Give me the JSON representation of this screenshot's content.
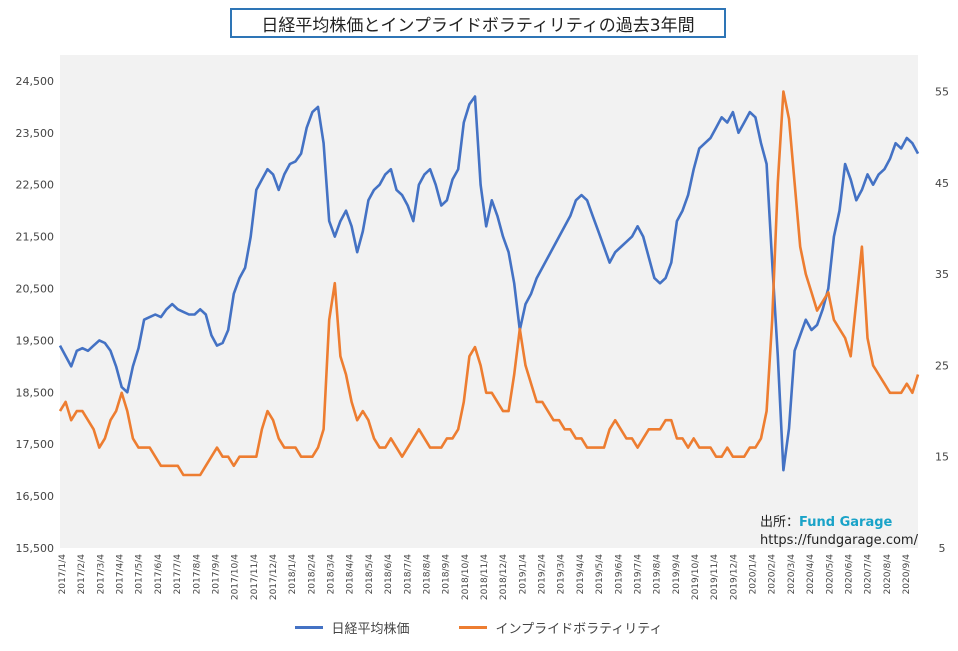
{
  "chart_data": {
    "type": "line",
    "title": "日経平均株価とインプライドボラティリティの過去3年間",
    "x_tick_labels": [
      "2017/1/4",
      "2017/2/4",
      "2017/3/4",
      "2017/4/4",
      "2017/5/4",
      "2017/6/4",
      "2017/7/4",
      "2017/8/4",
      "2017/9/4",
      "2017/10/4",
      "2017/11/4",
      "2017/12/4",
      "2018/1/4",
      "2018/2/4",
      "2018/3/4",
      "2018/4/4",
      "2018/5/4",
      "2018/6/4",
      "2018/7/4",
      "2018/8/4",
      "2018/9/4",
      "2018/10/4",
      "2018/11/4",
      "2018/12/4",
      "2019/1/4",
      "2019/2/4",
      "2019/3/4",
      "2019/4/4",
      "2019/5/4",
      "2019/6/4",
      "2019/7/4",
      "2019/8/4",
      "2019/9/4",
      "2019/10/4",
      "2019/11/4",
      "2019/12/4",
      "2020/1/4",
      "2020/2/4",
      "2020/3/4",
      "2020/4/4",
      "2020/5/4",
      "2020/6/4",
      "2020/7/4",
      "2020/8/4",
      "2020/9/4"
    ],
    "y_left": {
      "min": 15500,
      "max": 25000,
      "ticks": [
        15500,
        16500,
        17500,
        18500,
        19500,
        20500,
        21500,
        22500,
        23500,
        24500
      ],
      "tick_labels": [
        "15,500",
        "16,500",
        "17,500",
        "18,500",
        "19,500",
        "20,500",
        "21,500",
        "22,500",
        "23,500",
        "24,500"
      ]
    },
    "y_right": {
      "min": 5,
      "max": 59,
      "ticks": [
        5,
        15,
        25,
        35,
        45,
        55
      ],
      "tick_labels": [
        "5",
        "15",
        "25",
        "35",
        "45",
        "55"
      ]
    },
    "grid": false,
    "legend_position": "bottom",
    "series": [
      {
        "name": "日経平均株価",
        "axis": "left",
        "color": "#4472c4",
        "values": [
          19400,
          19200,
          19000,
          19300,
          19350,
          19300,
          19400,
          19500,
          19450,
          19300,
          19000,
          18600,
          18500,
          19000,
          19350,
          19900,
          19950,
          20000,
          19950,
          20100,
          20200,
          20100,
          20050,
          20000,
          20000,
          20100,
          20000,
          19600,
          19400,
          19450,
          19700,
          20400,
          20700,
          20900,
          21500,
          22400,
          22600,
          22800,
          22700,
          22400,
          22700,
          22900,
          22950,
          23100,
          23600,
          23900,
          24000,
          23300,
          21800,
          21500,
          21800,
          22000,
          21700,
          21200,
          21600,
          22200,
          22400,
          22500,
          22700,
          22800,
          22400,
          22300,
          22100,
          21800,
          22500,
          22700,
          22800,
          22500,
          22100,
          22200,
          22600,
          22800,
          23700,
          24050,
          24200,
          22500,
          21700,
          22200,
          21900,
          21500,
          21200,
          20600,
          19700,
          20200,
          20400,
          20700,
          20900,
          21100,
          21300,
          21500,
          21700,
          21900,
          22200,
          22300,
          22200,
          21900,
          21600,
          21300,
          21000,
          21200,
          21300,
          21400,
          21500,
          21700,
          21500,
          21100,
          20700,
          20600,
          20700,
          21000,
          21800,
          22000,
          22300,
          22800,
          23200,
          23300,
          23400,
          23600,
          23800,
          23700,
          23900,
          23500,
          23700,
          23900,
          23800,
          23300,
          22900,
          21000,
          19200,
          17000,
          17800,
          19300,
          19600,
          19900,
          19700,
          19800,
          20100,
          20500,
          21500,
          22000,
          22900,
          22600,
          22200,
          22400,
          22700,
          22500,
          22700,
          22800,
          23000,
          23300,
          23200,
          23400,
          23300,
          23100
        ]
      },
      {
        "name": "インプライドボラティリティ",
        "axis": "right",
        "color": "#ed7d31",
        "values": [
          20,
          21,
          19,
          20,
          20,
          19,
          18,
          16,
          17,
          19,
          20,
          22,
          20,
          17,
          16,
          16,
          16,
          15,
          14,
          14,
          14,
          14,
          13,
          13,
          13,
          13,
          14,
          15,
          16,
          15,
          15,
          14,
          15,
          15,
          15,
          15,
          18,
          20,
          19,
          17,
          16,
          16,
          16,
          15,
          15,
          15,
          16,
          18,
          30,
          34,
          26,
          24,
          21,
          19,
          20,
          19,
          17,
          16,
          16,
          17,
          16,
          15,
          16,
          17,
          18,
          17,
          16,
          16,
          16,
          17,
          17,
          18,
          21,
          26,
          27,
          25,
          22,
          22,
          21,
          20,
          20,
          24,
          29,
          25,
          23,
          21,
          21,
          20,
          19,
          19,
          18,
          18,
          17,
          17,
          16,
          16,
          16,
          16,
          18,
          19,
          18,
          17,
          17,
          16,
          17,
          18,
          18,
          18,
          19,
          19,
          17,
          17,
          16,
          17,
          16,
          16,
          16,
          15,
          15,
          16,
          15,
          15,
          15,
          16,
          16,
          17,
          20,
          30,
          45,
          55,
          52,
          45,
          38,
          35,
          33,
          31,
          32,
          33,
          30,
          29,
          28,
          26,
          32,
          38,
          28,
          25,
          24,
          23,
          22,
          22,
          22,
          23,
          22,
          24
        ]
      }
    ]
  },
  "source": {
    "label": "出所：",
    "brand": "Fund Garage",
    "url": "https://fundgarage.com/"
  }
}
